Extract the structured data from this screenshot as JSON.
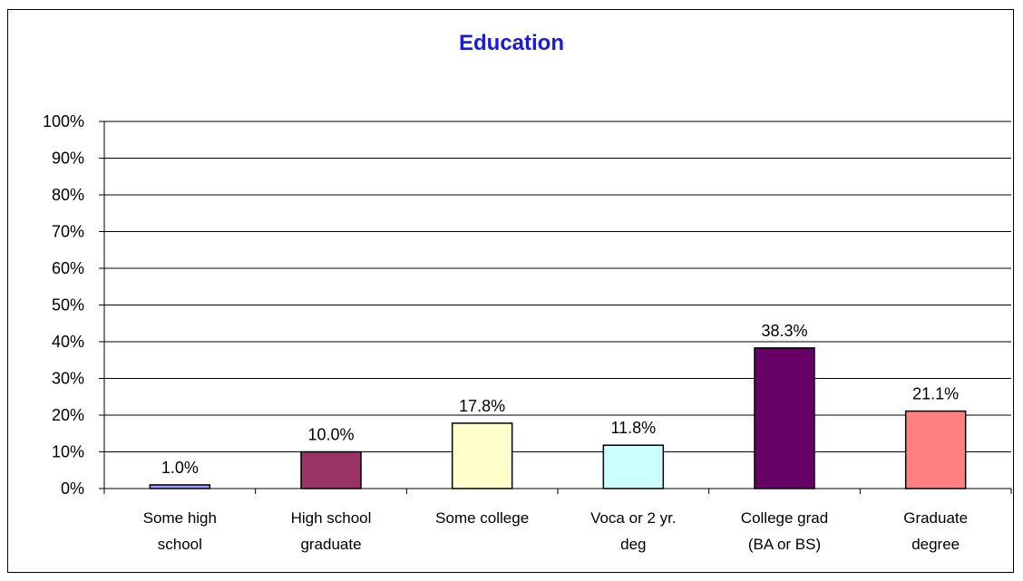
{
  "chart_data": {
    "type": "bar",
    "title": "Education",
    "categories": [
      [
        "Some high",
        "school"
      ],
      [
        "High school",
        "graduate"
      ],
      [
        "Some college"
      ],
      [
        "Voca or 2 yr.",
        "deg"
      ],
      [
        "College grad",
        "(BA or BS)"
      ],
      [
        "Graduate",
        "degree"
      ]
    ],
    "values": [
      1.0,
      10.0,
      17.8,
      11.8,
      38.3,
      21.1
    ],
    "data_labels": [
      "1.0%",
      "10.0%",
      "17.8%",
      "11.8%",
      "38.3%",
      "21.1%"
    ],
    "bar_colors": [
      "#9999ff",
      "#993366",
      "#ffffcc",
      "#ccffff",
      "#660066",
      "#ff8080"
    ],
    "ylim": [
      0,
      100
    ],
    "yticks": [
      0,
      10,
      20,
      30,
      40,
      50,
      60,
      70,
      80,
      90,
      100
    ],
    "ytick_labels": [
      "0%",
      "10%",
      "20%",
      "30%",
      "40%",
      "50%",
      "60%",
      "70%",
      "80%",
      "90%",
      "100%"
    ],
    "grid": true,
    "legend": "none",
    "title_color": "#1a1adc"
  }
}
